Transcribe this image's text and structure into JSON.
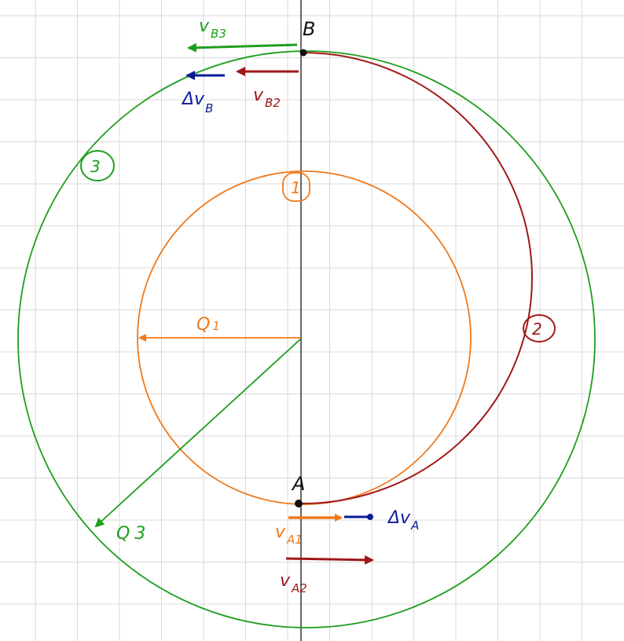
{
  "diagram": {
    "colors": {
      "grid": "#d9d9d9",
      "axis": "#000000",
      "orbit1": "#f07a1c",
      "orbit2": "#a01818",
      "orbit3": "#1e9e1e",
      "delta": "#0a1a9a",
      "point": "#111111"
    },
    "points": {
      "a": "A",
      "b": "B"
    },
    "orbit_labels": {
      "orbit1": "1",
      "orbit2": "2",
      "orbit3": "3"
    },
    "radius_labels": {
      "r1": {
        "main": "Q",
        "sub": "1"
      },
      "r3": {
        "main": "Q",
        "sub": "3"
      }
    },
    "velocity_labels": {
      "vB3": {
        "main": "v",
        "sub": "B3"
      },
      "vB2": {
        "main": "v",
        "sub": "B2"
      },
      "dvB": {
        "main": "Δv",
        "sub": "B"
      },
      "vA1": {
        "main": "v",
        "sub": "A1"
      },
      "vA2": {
        "main": "v",
        "sub": "A2"
      },
      "dvA": {
        "main": "Δv",
        "sub": "A"
      }
    }
  }
}
